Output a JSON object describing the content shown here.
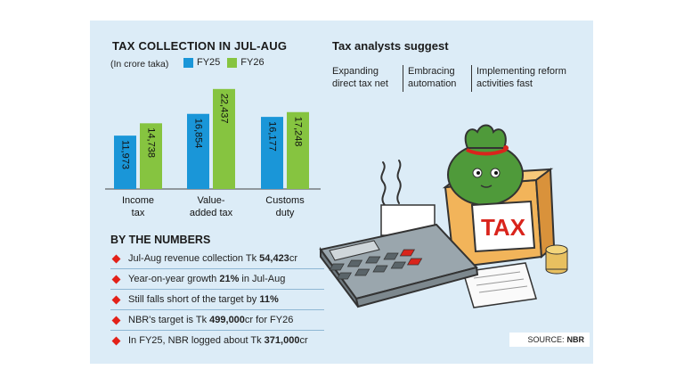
{
  "chart_data": {
    "type": "bar",
    "title": "TAX COLLECTION IN JUL-AUG",
    "subtitle": "(In crore taka)",
    "categories": [
      "Income\ntax",
      "Value-\nadded tax",
      "Customs\nduty"
    ],
    "category_lines": [
      [
        "Income",
        "tax"
      ],
      [
        "Value-",
        "added tax"
      ],
      [
        "Customs",
        "duty"
      ]
    ],
    "series": [
      {
        "name": "FY25",
        "values": [
          11973,
          16854,
          16177
        ],
        "labels": [
          "11,973",
          "16,854",
          "16,177"
        ],
        "color": "#1a96d8"
      },
      {
        "name": "FY26",
        "values": [
          14738,
          22437,
          17248
        ],
        "labels": [
          "14,738",
          "22,437",
          "17,248"
        ],
        "color": "#86c440"
      }
    ],
    "ylim": [
      0,
      24000
    ],
    "grid": false,
    "legend": "top"
  },
  "numbers": {
    "title": "BY THE NUMBERS",
    "items": [
      {
        "pre": "Jul-Aug revenue collection Tk ",
        "bold": "54,423",
        "post": "cr"
      },
      {
        "pre": "Year-on-year growth ",
        "bold": "21%",
        "post": " in Jul-Aug"
      },
      {
        "pre": "Still falls short of the target by ",
        "bold": "11%",
        "post": ""
      },
      {
        "pre": "NBR's target is Tk ",
        "bold": "499,000",
        "post": "cr for FY26"
      },
      {
        "pre": "In FY25, NBR logged about Tk ",
        "bold": "371,000",
        "post": "cr"
      }
    ]
  },
  "analysts": {
    "title": "Tax analysts suggest",
    "suggestions": [
      {
        "line1": "Expanding",
        "line2": "direct tax net"
      },
      {
        "line1": "Embracing",
        "line2": "automation"
      },
      {
        "line1": "Implementing reform",
        "line2": "activities fast"
      }
    ]
  },
  "illustration": {
    "box_label": "TAX",
    "icons": [
      "calculator-icon",
      "money-bag-icon",
      "coin-stack-icon",
      "tax-box-icon"
    ]
  },
  "source": {
    "label": "SOURCE:",
    "value": "NBR"
  },
  "colors": {
    "panel": "#dcecf7",
    "fy25": "#1a96d8",
    "fy26": "#86c440",
    "bullet": "#e32119",
    "tax_red": "#d9241c"
  }
}
